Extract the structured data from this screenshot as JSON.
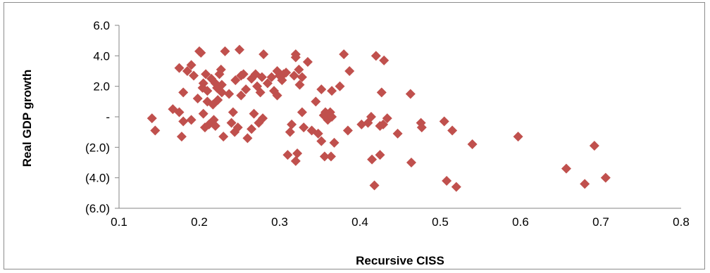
{
  "chart_data": {
    "type": "scatter",
    "title": "",
    "xlabel": "Recursive CISS",
    "ylabel": "Real GDP growth",
    "xlim": [
      0.1,
      0.8
    ],
    "ylim": [
      -6,
      6
    ],
    "grid": false,
    "legend": "none",
    "marker_color": "#c0504d",
    "marker_shape": "diamond",
    "x_ticks": [
      {
        "value": 0.1,
        "label": "0.1"
      },
      {
        "value": 0.2,
        "label": "0.2"
      },
      {
        "value": 0.3,
        "label": "0.3"
      },
      {
        "value": 0.4,
        "label": "0.4"
      },
      {
        "value": 0.5,
        "label": "0.5"
      },
      {
        "value": 0.6,
        "label": "0.6"
      },
      {
        "value": 0.7,
        "label": "0.7"
      },
      {
        "value": 0.8,
        "label": "0.8"
      }
    ],
    "y_ticks": [
      {
        "value": 6,
        "label": "6.0"
      },
      {
        "value": 4,
        "label": "4.0"
      },
      {
        "value": 2,
        "label": "2.0"
      },
      {
        "value": 0,
        "label": "-"
      },
      {
        "value": -2,
        "label": "(2.0)"
      },
      {
        "value": -4,
        "label": "(4.0)"
      },
      {
        "value": -6,
        "label": "(6.0)"
      }
    ],
    "points": [
      [
        0.141,
        -0.1
      ],
      [
        0.145,
        -0.9
      ],
      [
        0.167,
        0.5
      ],
      [
        0.175,
        3.2
      ],
      [
        0.175,
        0.3
      ],
      [
        0.178,
        -1.3
      ],
      [
        0.18,
        -0.3
      ],
      [
        0.18,
        1.6
      ],
      [
        0.185,
        3.0
      ],
      [
        0.19,
        3.4
      ],
      [
        0.19,
        -0.2
      ],
      [
        0.193,
        2.7
      ],
      [
        0.198,
        1.2
      ],
      [
        0.2,
        4.3
      ],
      [
        0.202,
        4.2
      ],
      [
        0.204,
        1.9
      ],
      [
        0.205,
        2.2
      ],
      [
        0.205,
        0.2
      ],
      [
        0.207,
        -0.7
      ],
      [
        0.208,
        2.8
      ],
      [
        0.21,
        1.7
      ],
      [
        0.21,
        1.0
      ],
      [
        0.212,
        -0.5
      ],
      [
        0.215,
        2.5
      ],
      [
        0.217,
        0.8
      ],
      [
        0.218,
        -0.2
      ],
      [
        0.22,
        2.2
      ],
      [
        0.22,
        -0.6
      ],
      [
        0.222,
        1.9
      ],
      [
        0.223,
        1.1
      ],
      [
        0.225,
        2.8
      ],
      [
        0.227,
        3.1
      ],
      [
        0.228,
        2.1
      ],
      [
        0.228,
        1.6
      ],
      [
        0.23,
        -1.3
      ],
      [
        0.232,
        4.3
      ],
      [
        0.237,
        1.5
      ],
      [
        0.24,
        -0.4
      ],
      [
        0.242,
        0.3
      ],
      [
        0.244,
        -1.0
      ],
      [
        0.245,
        2.4
      ],
      [
        0.248,
        -0.7
      ],
      [
        0.25,
        4.4
      ],
      [
        0.252,
        2.7
      ],
      [
        0.252,
        1.4
      ],
      [
        0.255,
        2.8
      ],
      [
        0.258,
        1.8
      ],
      [
        0.26,
        -1.4
      ],
      [
        0.265,
        2.5
      ],
      [
        0.265,
        -0.8
      ],
      [
        0.268,
        0.2
      ],
      [
        0.27,
        2.8
      ],
      [
        0.272,
        2.0
      ],
      [
        0.274,
        -0.4
      ],
      [
        0.276,
        1.6
      ],
      [
        0.278,
        2.6
      ],
      [
        0.279,
        -0.1
      ],
      [
        0.28,
        4.1
      ],
      [
        0.285,
        2.2
      ],
      [
        0.29,
        2.6
      ],
      [
        0.293,
        1.7
      ],
      [
        0.297,
        1.4
      ],
      [
        0.297,
        3.0
      ],
      [
        0.3,
        2.7
      ],
      [
        0.303,
        2.4
      ],
      [
        0.305,
        2.8
      ],
      [
        0.308,
        2.9
      ],
      [
        0.31,
        -2.5
      ],
      [
        0.313,
        -1.0
      ],
      [
        0.315,
        -0.5
      ],
      [
        0.318,
        2.7
      ],
      [
        0.32,
        4.1
      ],
      [
        0.32,
        3.9
      ],
      [
        0.32,
        -2.9
      ],
      [
        0.322,
        -2.4
      ],
      [
        0.324,
        3.1
      ],
      [
        0.325,
        2.1
      ],
      [
        0.328,
        2.6
      ],
      [
        0.328,
        0.3
      ],
      [
        0.33,
        -0.7
      ],
      [
        0.335,
        3.6
      ],
      [
        0.34,
        -0.9
      ],
      [
        0.345,
        1.0
      ],
      [
        0.348,
        -1.1
      ],
      [
        0.352,
        1.8
      ],
      [
        0.352,
        -1.6
      ],
      [
        0.355,
        0.1
      ],
      [
        0.356,
        -2.6
      ],
      [
        0.357,
        0.3
      ],
      [
        0.36,
        -0.2
      ],
      [
        0.363,
        0.3
      ],
      [
        0.364,
        -2.6
      ],
      [
        0.365,
        1.7
      ],
      [
        0.365,
        0.0
      ],
      [
        0.368,
        -1.7
      ],
      [
        0.375,
        2.0
      ],
      [
        0.38,
        4.1
      ],
      [
        0.385,
        -0.9
      ],
      [
        0.387,
        3.0
      ],
      [
        0.402,
        -0.5
      ],
      [
        0.41,
        -0.4
      ],
      [
        0.414,
        0.0
      ],
      [
        0.415,
        -2.8
      ],
      [
        0.418,
        -4.5
      ],
      [
        0.42,
        4.0
      ],
      [
        0.425,
        -0.6
      ],
      [
        0.425,
        -2.5
      ],
      [
        0.427,
        1.6
      ],
      [
        0.429,
        -0.5
      ],
      [
        0.43,
        3.7
      ],
      [
        0.434,
        -0.1
      ],
      [
        0.447,
        -1.1
      ],
      [
        0.463,
        1.5
      ],
      [
        0.464,
        -3.0
      ],
      [
        0.476,
        -0.4
      ],
      [
        0.477,
        -0.7
      ],
      [
        0.505,
        -0.3
      ],
      [
        0.508,
        -4.2
      ],
      [
        0.515,
        -0.9
      ],
      [
        0.52,
        -4.6
      ],
      [
        0.54,
        -1.8
      ],
      [
        0.597,
        -1.3
      ],
      [
        0.657,
        -3.4
      ],
      [
        0.68,
        -4.4
      ],
      [
        0.692,
        -1.9
      ],
      [
        0.706,
        -4.0
      ]
    ]
  }
}
